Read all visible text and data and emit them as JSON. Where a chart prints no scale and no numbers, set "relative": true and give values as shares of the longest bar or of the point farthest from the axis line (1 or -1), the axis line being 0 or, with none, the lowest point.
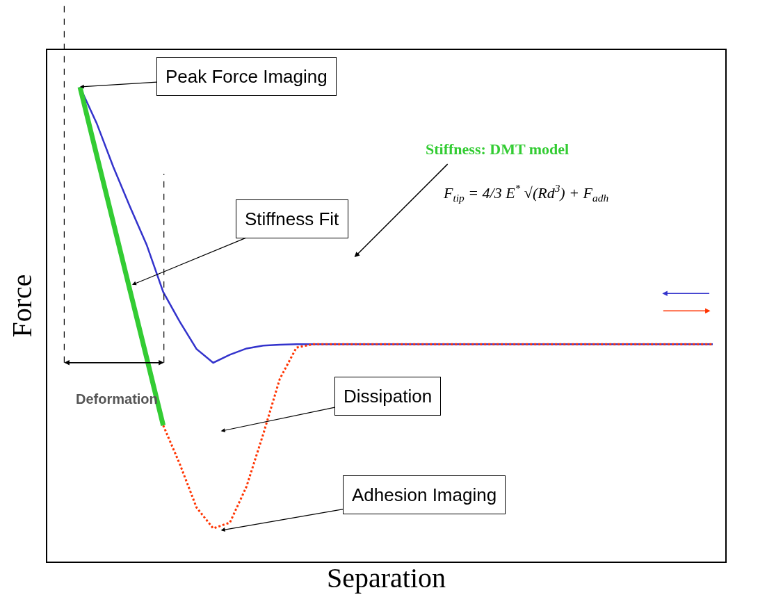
{
  "chart_data": {
    "type": "line",
    "relative": true,
    "xlabel": "Separation",
    "ylabel": "Force",
    "tick_labels": false,
    "categories": [
      null,
      null,
      null,
      null,
      null,
      null,
      null,
      null,
      null,
      null,
      null,
      null,
      null,
      null,
      null,
      null,
      null,
      null,
      null,
      null,
      null,
      null,
      null,
      null,
      null,
      null,
      null,
      null,
      null,
      null,
      null,
      null,
      null,
      null,
      null,
      null,
      null,
      null,
      null
    ],
    "series": [
      {
        "color": "#3333cc",
        "line_style": "solid",
        "values": [
          1.0,
          0.924,
          0.832,
          0.748,
          0.668,
          0.568,
          0.505,
          0.448,
          0.419,
          0.436,
          0.449,
          0.455,
          0.457,
          0.458,
          0.458,
          0.458,
          0.458,
          0.458,
          0.458,
          0.458,
          0.458,
          0.458,
          0.458,
          0.458,
          0.458,
          0.458,
          0.458,
          0.458,
          0.458,
          0.458,
          0.458,
          0.458,
          0.458,
          0.458,
          0.458,
          0.458,
          0.458,
          0.458,
          0.458
        ]
      },
      {
        "color": "#ff3300",
        "line_style": "dotted",
        "values": [
          null,
          null,
          null,
          null,
          null,
          0.287,
          0.205,
          0.114,
          0.07,
          0.082,
          0.158,
          0.268,
          0.385,
          0.451,
          0.458,
          0.458,
          0.458,
          0.458,
          0.458,
          0.458,
          0.458,
          0.458,
          0.458,
          0.458,
          0.458,
          0.458,
          0.458,
          0.458,
          0.458,
          0.458,
          0.458,
          0.458,
          0.458,
          0.458,
          0.458,
          0.458,
          0.458,
          0.458,
          0.458
        ]
      },
      {
        "color": "#33cc33",
        "line_style": "solid",
        "values": [
          1.0,
          0.857,
          0.715,
          0.572,
          0.43,
          0.287,
          null,
          null,
          null,
          null,
          null,
          null,
          null,
          null,
          null,
          null,
          null,
          null,
          null,
          null,
          null,
          null,
          null,
          null,
          null,
          null,
          null,
          null,
          null,
          null,
          null,
          null,
          null,
          null,
          null,
          null,
          null,
          null,
          null
        ]
      }
    ],
    "annotations": [
      "Peak Force Imaging",
      "Stiffness Fit",
      "Dissipation",
      "Adhesion Imaging",
      "Deformation",
      "Stiffness: DMT model",
      "F$_{tip}$ = 4/3 E$^{*}$ √(Rd$^{3}$) + F$_{adh}$"
    ]
  }
}
